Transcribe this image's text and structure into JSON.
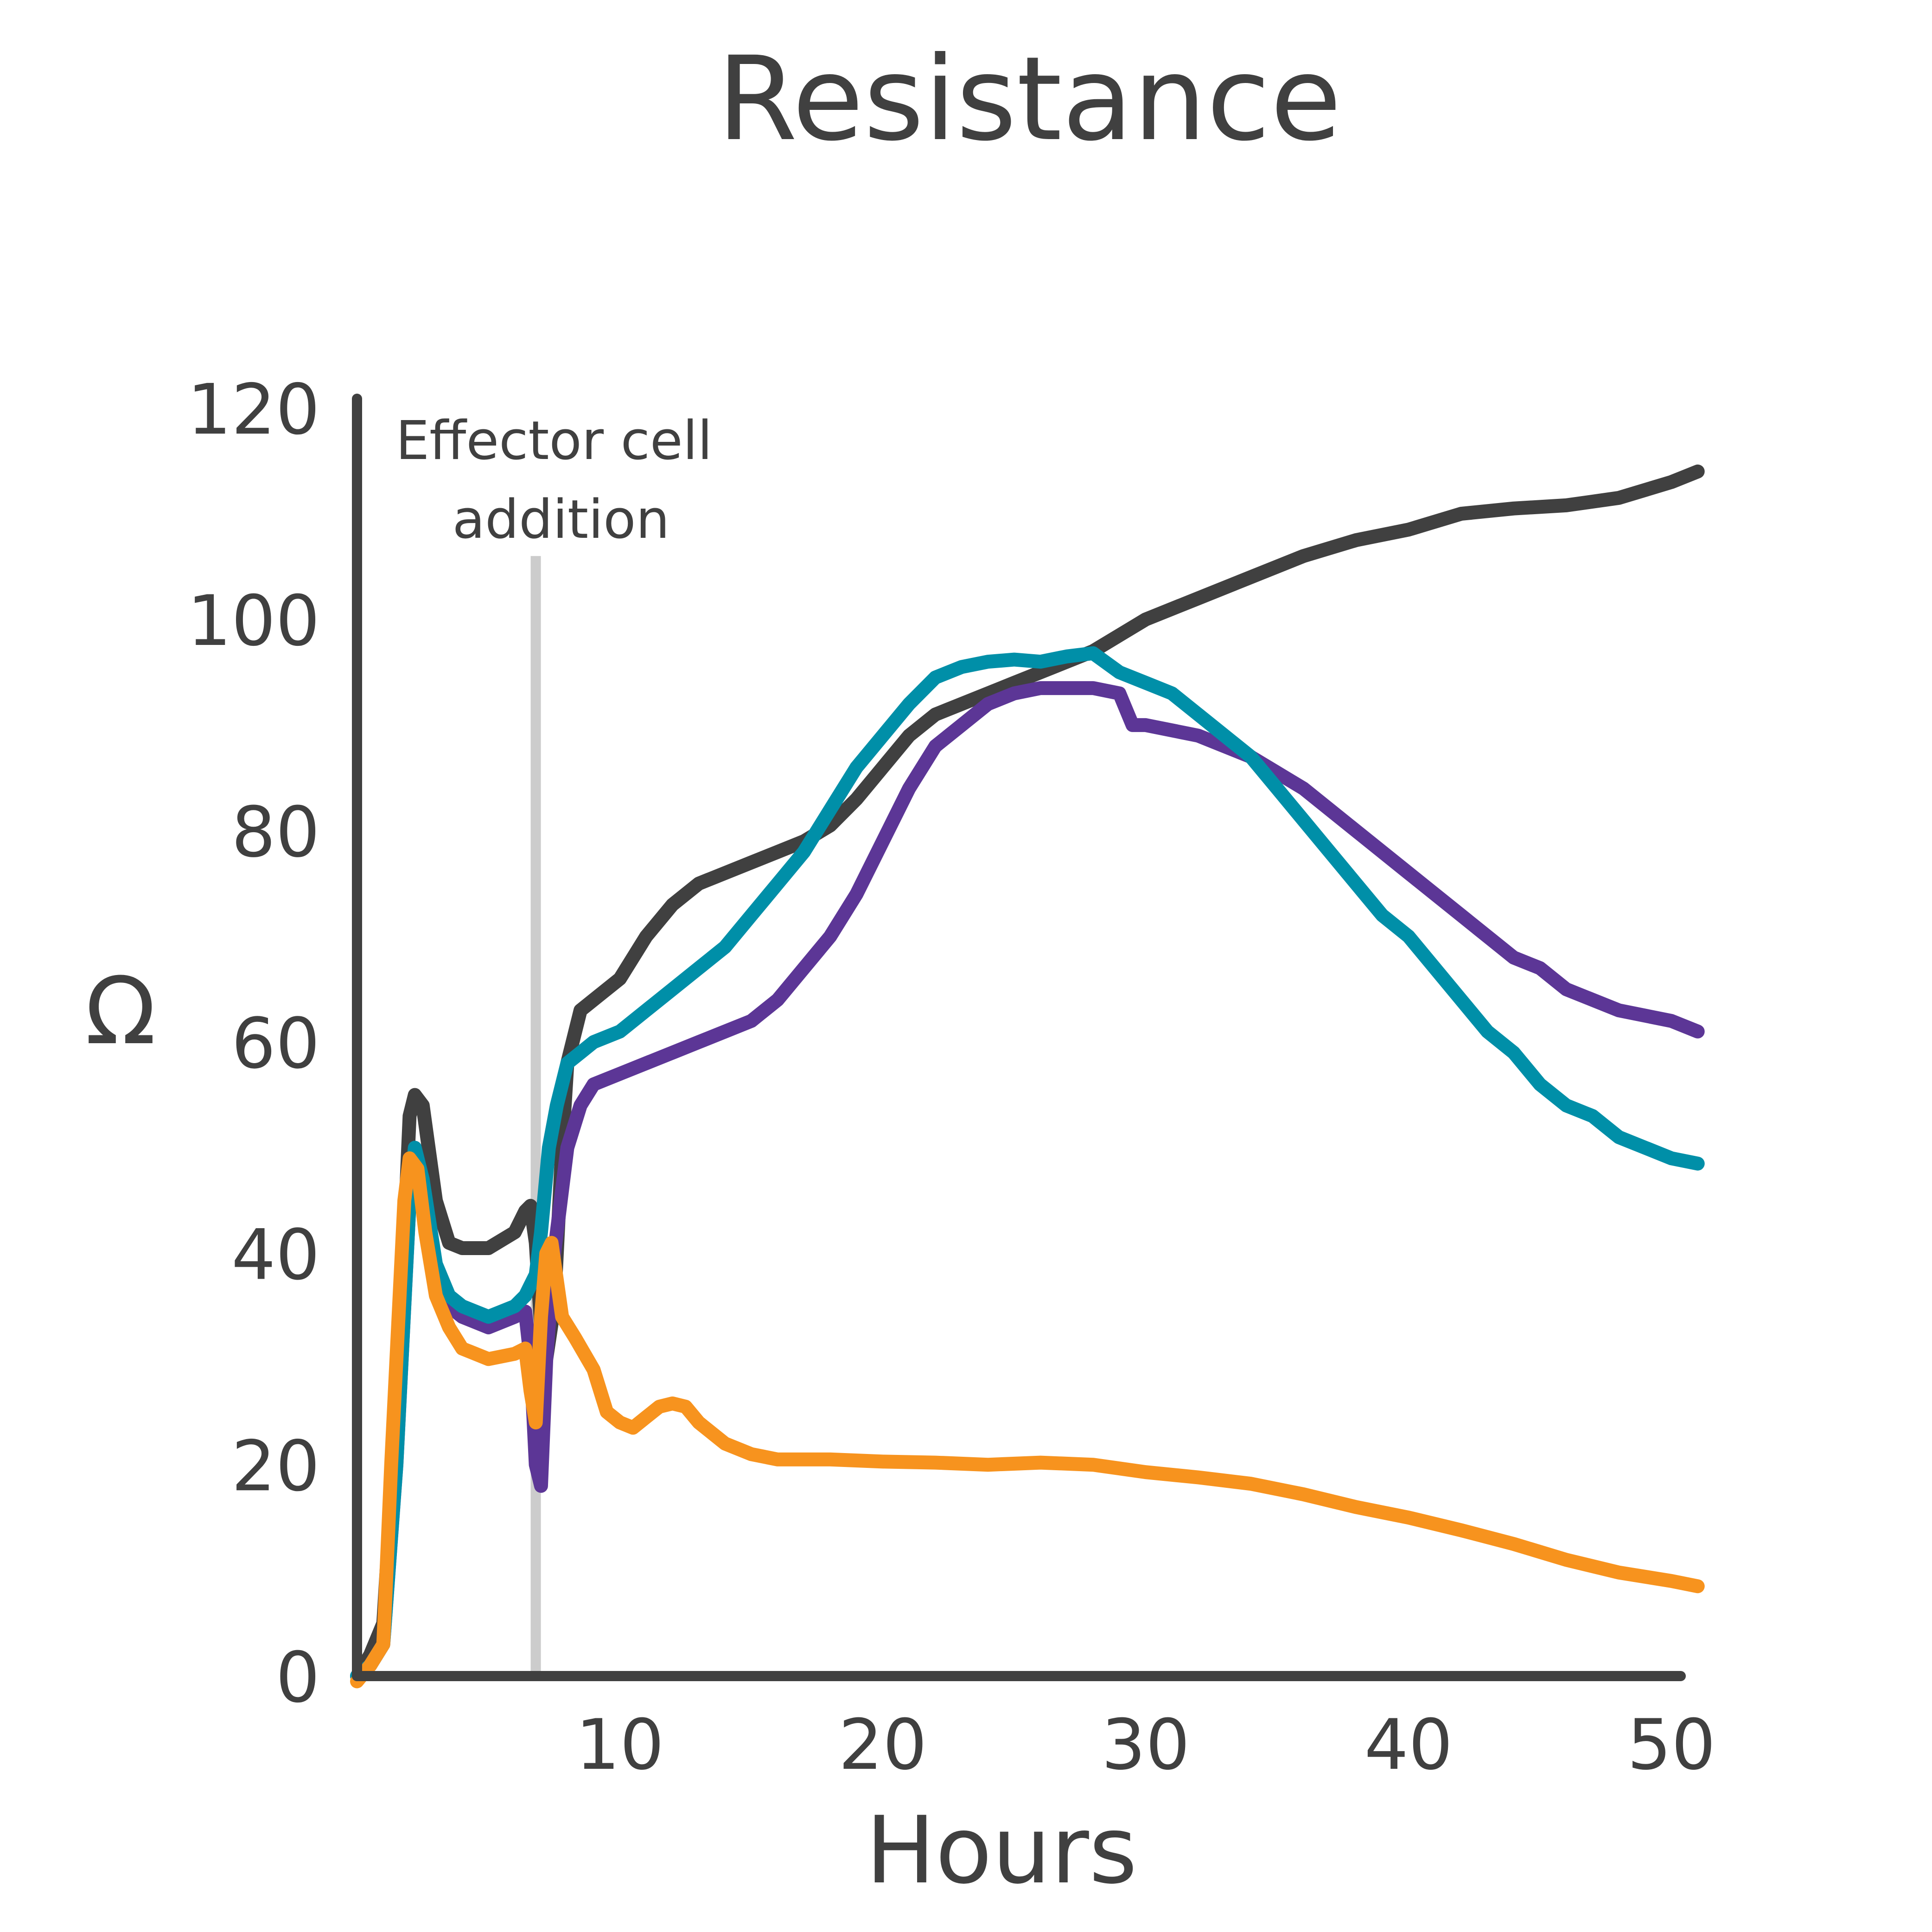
{
  "chart_data": {
    "type": "line",
    "title": "Resistance",
    "xlabel": "Hours",
    "ylabel": "Ω",
    "xlim": [
      0,
      53
    ],
    "ylim": [
      0,
      120
    ],
    "xticks": [
      10,
      20,
      30,
      40,
      50
    ],
    "yticks": [
      0,
      20,
      40,
      60,
      80,
      100,
      120
    ],
    "grid": false,
    "legend": "none",
    "annotations": [
      {
        "text_lines": [
          "Effector cell",
          "addition"
        ],
        "x": 6.8,
        "kind": "vertical-line",
        "y_top": 106,
        "color": "#cccccc"
      }
    ],
    "series": [
      {
        "color": "#404040",
        "points": [
          [
            0,
            0
          ],
          [
            0.5,
            2
          ],
          [
            1,
            5
          ],
          [
            1.5,
            25
          ],
          [
            2,
            53
          ],
          [
            2.2,
            55
          ],
          [
            2.5,
            54
          ],
          [
            3,
            45
          ],
          [
            3.5,
            41
          ],
          [
            4,
            40.5
          ],
          [
            5,
            40.5
          ],
          [
            6,
            42
          ],
          [
            6.4,
            44
          ],
          [
            6.6,
            44.5
          ],
          [
            6.8,
            41
          ],
          [
            7,
            33
          ],
          [
            7.2,
            30
          ],
          [
            7.5,
            35
          ],
          [
            7.8,
            50
          ],
          [
            8,
            58
          ],
          [
            8.5,
            63
          ],
          [
            9,
            64
          ],
          [
            10,
            66
          ],
          [
            11,
            70
          ],
          [
            12,
            73
          ],
          [
            13,
            75
          ],
          [
            14,
            76
          ],
          [
            15,
            77
          ],
          [
            16,
            78
          ],
          [
            17,
            79
          ],
          [
            18,
            80.5
          ],
          [
            19,
            83
          ],
          [
            20,
            86
          ],
          [
            21,
            89
          ],
          [
            22,
            91
          ],
          [
            23,
            92
          ],
          [
            24,
            93
          ],
          [
            25,
            94
          ],
          [
            26,
            95
          ],
          [
            27,
            96
          ],
          [
            28,
            97
          ],
          [
            29,
            98.5
          ],
          [
            30,
            100
          ],
          [
            32,
            102
          ],
          [
            34,
            104
          ],
          [
            36,
            106
          ],
          [
            38,
            107.5
          ],
          [
            40,
            108.5
          ],
          [
            42,
            110
          ],
          [
            44,
            110.5
          ],
          [
            46,
            110.8
          ],
          [
            48,
            111.5
          ],
          [
            50,
            113
          ],
          [
            51,
            114
          ]
        ]
      },
      {
        "color": "#5c3696",
        "points": [
          [
            0,
            0
          ],
          [
            0.5,
            1
          ],
          [
            1,
            3
          ],
          [
            1.5,
            20
          ],
          [
            2,
            45
          ],
          [
            2.2,
            50
          ],
          [
            2.5,
            47
          ],
          [
            3,
            38
          ],
          [
            3.5,
            35
          ],
          [
            4,
            34
          ],
          [
            5,
            33
          ],
          [
            6,
            34
          ],
          [
            6.4,
            34.5
          ],
          [
            6.6,
            30
          ],
          [
            6.8,
            20
          ],
          [
            7,
            18
          ],
          [
            7.2,
            30
          ],
          [
            7.5,
            40
          ],
          [
            8,
            50
          ],
          [
            8.5,
            54
          ],
          [
            9,
            56
          ],
          [
            10,
            57
          ],
          [
            11,
            58
          ],
          [
            12,
            59
          ],
          [
            13,
            60
          ],
          [
            14,
            61
          ],
          [
            15,
            62
          ],
          [
            16,
            64
          ],
          [
            17,
            67
          ],
          [
            18,
            70
          ],
          [
            19,
            74
          ],
          [
            20,
            79
          ],
          [
            21,
            84
          ],
          [
            22,
            88
          ],
          [
            23,
            90
          ],
          [
            24,
            92
          ],
          [
            25,
            93
          ],
          [
            26,
            93.5
          ],
          [
            28,
            93.5
          ],
          [
            29,
            93
          ],
          [
            29.5,
            90
          ],
          [
            30,
            90
          ],
          [
            32,
            89
          ],
          [
            34,
            87
          ],
          [
            36,
            84
          ],
          [
            38,
            80
          ],
          [
            40,
            76
          ],
          [
            42,
            72
          ],
          [
            44,
            68
          ],
          [
            45,
            67
          ],
          [
            46,
            65
          ],
          [
            48,
            63
          ],
          [
            50,
            62
          ],
          [
            51,
            61
          ]
        ]
      },
      {
        "color": "#008fa8",
        "points": [
          [
            0,
            0
          ],
          [
            0.5,
            1
          ],
          [
            1,
            3
          ],
          [
            1.5,
            20
          ],
          [
            2,
            45
          ],
          [
            2.2,
            50
          ],
          [
            2.5,
            47
          ],
          [
            3,
            39
          ],
          [
            3.5,
            36
          ],
          [
            4,
            35
          ],
          [
            5,
            34
          ],
          [
            6,
            35
          ],
          [
            6.4,
            36
          ],
          [
            6.6,
            37
          ],
          [
            6.8,
            38
          ],
          [
            7,
            42
          ],
          [
            7.3,
            50
          ],
          [
            7.6,
            54
          ],
          [
            8,
            58
          ],
          [
            8.5,
            59
          ],
          [
            9,
            60
          ],
          [
            10,
            61
          ],
          [
            11,
            63
          ],
          [
            12,
            65
          ],
          [
            13,
            67
          ],
          [
            14,
            69
          ],
          [
            15,
            72
          ],
          [
            16,
            75
          ],
          [
            17,
            78
          ],
          [
            18,
            82
          ],
          [
            19,
            86
          ],
          [
            20,
            89
          ],
          [
            21,
            92
          ],
          [
            22,
            94.5
          ],
          [
            23,
            95.5
          ],
          [
            24,
            96
          ],
          [
            25,
            96.2
          ],
          [
            26,
            96
          ],
          [
            27,
            96.5
          ],
          [
            28,
            96.8
          ],
          [
            29,
            95
          ],
          [
            30,
            94
          ],
          [
            31,
            93
          ],
          [
            32,
            91
          ],
          [
            33,
            89
          ],
          [
            34,
            87
          ],
          [
            35,
            84
          ],
          [
            36,
            81
          ],
          [
            37,
            78
          ],
          [
            38,
            75
          ],
          [
            39,
            72
          ],
          [
            40,
            70
          ],
          [
            41,
            67
          ],
          [
            42,
            64
          ],
          [
            43,
            61
          ],
          [
            44,
            59
          ],
          [
            45,
            56
          ],
          [
            46,
            54
          ],
          [
            47,
            53
          ],
          [
            48,
            51
          ],
          [
            49,
            50
          ],
          [
            50,
            49
          ],
          [
            51,
            48.5
          ]
        ]
      },
      {
        "color": "#f7931e",
        "points": [
          [
            0,
            -0.5
          ],
          [
            0.5,
            1
          ],
          [
            1,
            3
          ],
          [
            1.3,
            20
          ],
          [
            1.8,
            45
          ],
          [
            2,
            49
          ],
          [
            2.3,
            48
          ],
          [
            2.6,
            42
          ],
          [
            3,
            36
          ],
          [
            3.5,
            33
          ],
          [
            4,
            31
          ],
          [
            5,
            30
          ],
          [
            6,
            30.5
          ],
          [
            6.4,
            31
          ],
          [
            6.6,
            27
          ],
          [
            6.8,
            24
          ],
          [
            7,
            34
          ],
          [
            7.2,
            40
          ],
          [
            7.4,
            41
          ],
          [
            7.8,
            34
          ],
          [
            8.3,
            32
          ],
          [
            9,
            29
          ],
          [
            9.5,
            25
          ],
          [
            10,
            24
          ],
          [
            10.5,
            23.5
          ],
          [
            11,
            24.5
          ],
          [
            11.5,
            25.5
          ],
          [
            12,
            25.8
          ],
          [
            12.5,
            25.5
          ],
          [
            13,
            24
          ],
          [
            14,
            22
          ],
          [
            15,
            21
          ],
          [
            16,
            20.5
          ],
          [
            18,
            20.5
          ],
          [
            20,
            20.3
          ],
          [
            22,
            20.2
          ],
          [
            24,
            20
          ],
          [
            26,
            20.2
          ],
          [
            28,
            20
          ],
          [
            30,
            19.3
          ],
          [
            32,
            18.8
          ],
          [
            34,
            18.2
          ],
          [
            36,
            17.2
          ],
          [
            38,
            16
          ],
          [
            40,
            15
          ],
          [
            42,
            13.8
          ],
          [
            44,
            12.5
          ],
          [
            46,
            11
          ],
          [
            48,
            9.8
          ],
          [
            50,
            9
          ],
          [
            51,
            8.5
          ]
        ]
      }
    ]
  }
}
